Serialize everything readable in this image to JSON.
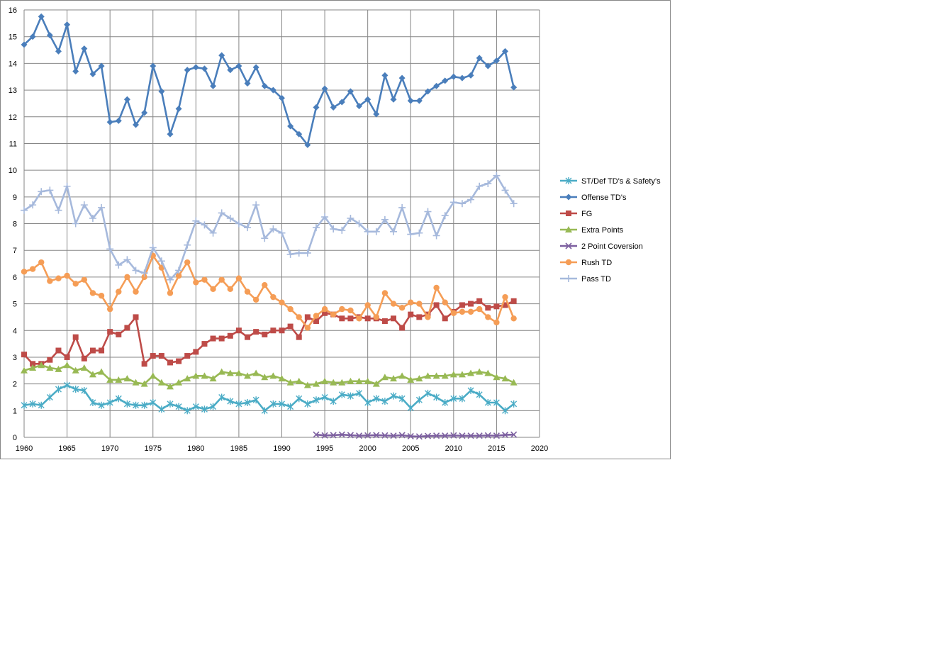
{
  "chart_data": {
    "type": "line",
    "title": "",
    "xlabel": "",
    "ylabel": "",
    "xlim": [
      1960,
      2020
    ],
    "ylim": [
      0,
      16
    ],
    "x_ticks": [
      1960,
      1965,
      1970,
      1975,
      1980,
      1985,
      1990,
      1995,
      2000,
      2005,
      2010,
      2015,
      2020
    ],
    "y_ticks": [
      0,
      1,
      2,
      3,
      4,
      5,
      6,
      7,
      8,
      9,
      10,
      11,
      12,
      13,
      14,
      15,
      16
    ],
    "grid": "on",
    "legend_position": "right",
    "series": [
      {
        "name": "ST/Def TD's & Safety's",
        "color": "#4BACC6",
        "marker": "star",
        "x_start": 1960,
        "values": [
          1.2,
          1.25,
          1.2,
          1.5,
          1.8,
          1.95,
          1.8,
          1.75,
          1.3,
          1.2,
          1.3,
          1.45,
          1.25,
          1.2,
          1.2,
          1.3,
          1.05,
          1.25,
          1.15,
          1.0,
          1.15,
          1.05,
          1.15,
          1.5,
          1.35,
          1.25,
          1.3,
          1.4,
          1.0,
          1.25,
          1.25,
          1.15,
          1.45,
          1.25,
          1.4,
          1.5,
          1.35,
          1.6,
          1.55,
          1.65,
          1.3,
          1.45,
          1.35,
          1.55,
          1.45,
          1.1,
          1.4,
          1.65,
          1.5,
          1.3,
          1.45,
          1.45,
          1.75,
          1.6,
          1.3,
          1.3,
          1.0,
          1.25
        ]
      },
      {
        "name": "Offense TD's",
        "color": "#4A7EBB",
        "marker": "diamond",
        "x_start": 1960,
        "values": [
          14.7,
          15.0,
          15.75,
          15.05,
          14.45,
          15.45,
          13.7,
          14.55,
          13.6,
          13.9,
          11.8,
          11.85,
          12.65,
          11.7,
          12.15,
          13.9,
          12.95,
          11.35,
          12.3,
          13.75,
          13.85,
          13.8,
          13.15,
          14.3,
          13.75,
          13.9,
          13.25,
          13.85,
          13.15,
          13.0,
          12.7,
          11.65,
          11.35,
          10.95,
          12.35,
          13.05,
          12.35,
          12.55,
          12.95,
          12.4,
          12.65,
          12.1,
          13.55,
          12.65,
          13.45,
          12.6,
          12.6,
          12.95,
          13.15,
          13.35,
          13.5,
          13.45,
          13.55,
          14.2,
          13.9,
          14.1,
          14.45,
          13.1
        ]
      },
      {
        "name": "FG",
        "color": "#BE4B48",
        "marker": "square",
        "x_start": 1960,
        "values": [
          3.1,
          2.75,
          2.75,
          2.9,
          3.25,
          3.0,
          3.75,
          2.95,
          3.25,
          3.25,
          3.95,
          3.85,
          4.1,
          4.5,
          2.75,
          3.05,
          3.05,
          2.8,
          2.85,
          3.05,
          3.2,
          3.5,
          3.7,
          3.7,
          3.8,
          4.0,
          3.75,
          3.95,
          3.85,
          4.0,
          4.0,
          4.15,
          3.75,
          4.5,
          4.35,
          4.65,
          4.6,
          4.45,
          4.45,
          4.5,
          4.45,
          4.45,
          4.35,
          4.45,
          4.1,
          4.6,
          4.5,
          4.6,
          4.95,
          4.45,
          4.7,
          4.95,
          5.0,
          5.1,
          4.85,
          4.9,
          4.95,
          5.1
        ]
      },
      {
        "name": "Extra Points",
        "color": "#98B954",
        "marker": "triangle",
        "x_start": 1960,
        "values": [
          2.5,
          2.6,
          2.7,
          2.6,
          2.55,
          2.7,
          2.5,
          2.6,
          2.35,
          2.45,
          2.15,
          2.15,
          2.2,
          2.05,
          2.0,
          2.3,
          2.05,
          1.9,
          2.05,
          2.2,
          2.3,
          2.3,
          2.2,
          2.45,
          2.4,
          2.4,
          2.3,
          2.4,
          2.25,
          2.3,
          2.2,
          2.05,
          2.1,
          1.95,
          2.0,
          2.1,
          2.05,
          2.05,
          2.1,
          2.1,
          2.1,
          2.0,
          2.25,
          2.2,
          2.3,
          2.15,
          2.2,
          2.3,
          2.3,
          2.3,
          2.35,
          2.35,
          2.4,
          2.45,
          2.4,
          2.25,
          2.2,
          2.05
        ]
      },
      {
        "name": "2 Point Coversion",
        "color": "#7D60A0",
        "marker": "x",
        "x_start": 1994,
        "values": [
          0.1,
          0.07,
          0.08,
          0.1,
          0.08,
          0.06,
          0.07,
          0.08,
          0.07,
          0.06,
          0.08,
          0.04,
          0.03,
          0.05,
          0.06,
          0.06,
          0.07,
          0.06,
          0.06,
          0.06,
          0.07,
          0.06,
          0.09,
          0.1
        ]
      },
      {
        "name": "Rush TD",
        "color": "#F59D56",
        "marker": "circle",
        "x_start": 1960,
        "values": [
          6.2,
          6.3,
          6.55,
          5.85,
          5.95,
          6.05,
          5.75,
          5.9,
          5.4,
          5.3,
          4.8,
          5.45,
          6.0,
          5.45,
          6.0,
          6.8,
          6.35,
          5.4,
          6.05,
          6.55,
          5.8,
          5.9,
          5.55,
          5.9,
          5.55,
          5.95,
          5.45,
          5.15,
          5.7,
          5.25,
          5.05,
          4.8,
          4.5,
          4.1,
          4.55,
          4.8,
          4.6,
          4.8,
          4.75,
          4.45,
          4.95,
          4.5,
          5.4,
          5.0,
          4.85,
          5.05,
          5.0,
          4.5,
          5.6,
          5.05,
          4.65,
          4.7,
          4.7,
          4.8,
          4.5,
          4.3,
          5.25,
          4.45
        ]
      },
      {
        "name": "Pass TD",
        "color": "#A6B9DC",
        "marker": "plus",
        "x_start": 1960,
        "values": [
          8.5,
          8.7,
          9.2,
          9.25,
          8.5,
          9.4,
          8.0,
          8.7,
          8.2,
          8.6,
          7.05,
          6.45,
          6.65,
          6.25,
          6.15,
          7.1,
          6.6,
          5.9,
          6.25,
          7.2,
          8.1,
          7.95,
          7.65,
          8.4,
          8.2,
          8.0,
          7.85,
          8.7,
          7.45,
          7.8,
          7.65,
          6.85,
          6.9,
          6.9,
          7.85,
          8.25,
          7.8,
          7.75,
          8.2,
          8.0,
          7.7,
          7.7,
          8.15,
          7.7,
          8.6,
          7.6,
          7.65,
          8.45,
          7.55,
          8.3,
          8.8,
          8.75,
          8.9,
          9.4,
          9.5,
          9.8,
          9.25,
          8.75
        ]
      }
    ]
  }
}
